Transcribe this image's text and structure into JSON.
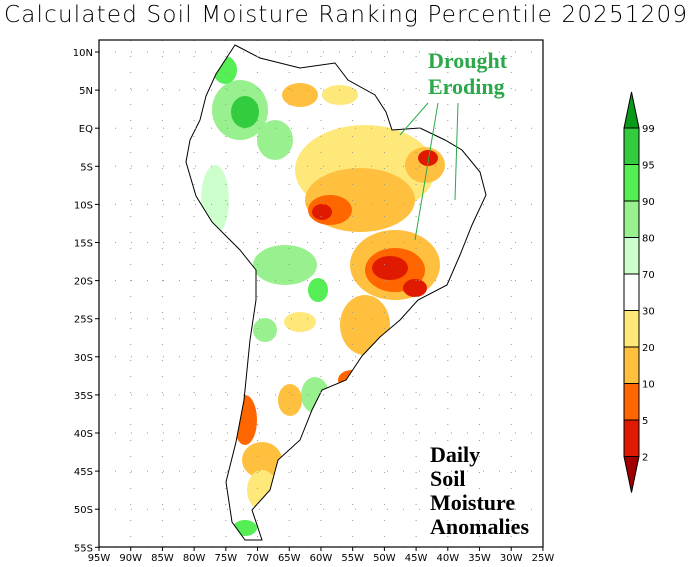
{
  "title": "Calculated Soil Moisture Ranking Percentile 20251209",
  "lat_labels": [
    "10N",
    "5N",
    "EQ",
    "5S",
    "10S",
    "15S",
    "20S",
    "25S",
    "30S",
    "35S",
    "40S",
    "45S",
    "50S",
    "55S"
  ],
  "lon_labels": [
    "95W",
    "90W",
    "85W",
    "80W",
    "75W",
    "70W",
    "65W",
    "60W",
    "55W",
    "50W",
    "45W",
    "40W",
    "35W",
    "30W",
    "25W"
  ],
  "annotation_drought": [
    "Drought",
    "Eroding"
  ],
  "annotation_daily": [
    "Daily",
    "Soil",
    "Moisture",
    "Anomalies"
  ],
  "colorbar": {
    "labels": [
      "99",
      "95",
      "90",
      "80",
      "70",
      "30",
      "20",
      "10",
      "5",
      "2"
    ],
    "colors": [
      "#0a9a1a",
      "#33cc3f",
      "#55ee55",
      "#99f08f",
      "#ccffcc",
      "#ffffff",
      "#ffe87a",
      "#ffc040",
      "#ff6600",
      "#e01a00",
      "#a00000"
    ]
  }
}
